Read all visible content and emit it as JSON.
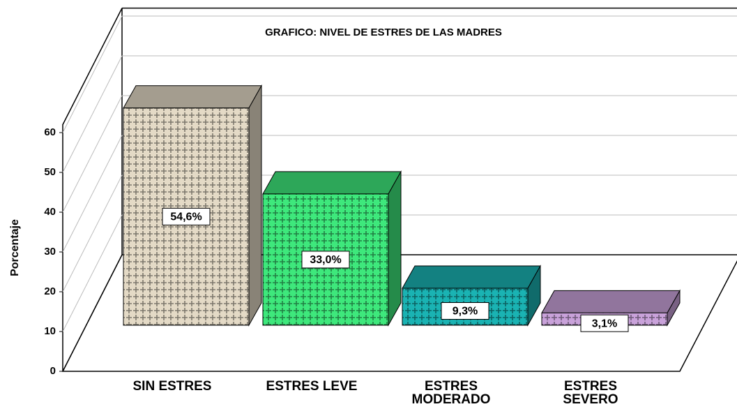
{
  "chart_data": {
    "type": "bar3d",
    "title": "GRAFICO: NIVEL DE ESTRES DE LAS MADRES",
    "y_label": "Porcentaje",
    "categories": [
      "SIN ESTRES",
      "ESTRES LEVE",
      "ESTRES MODERADO",
      "ESTRES SEVERO"
    ],
    "values": [
      54.6,
      33.0,
      9.3,
      3.1
    ],
    "value_labels": [
      "54,6%",
      "33,0%",
      "9,3%",
      "3,1%"
    ],
    "colors": [
      "#e4dac6",
      "#3ee87c",
      "#1ab3b3",
      "#c9a2da"
    ],
    "ylim": [
      0,
      62
    ],
    "yticks": [
      0,
      10,
      20,
      30,
      40,
      50,
      60
    ],
    "grid": true
  }
}
